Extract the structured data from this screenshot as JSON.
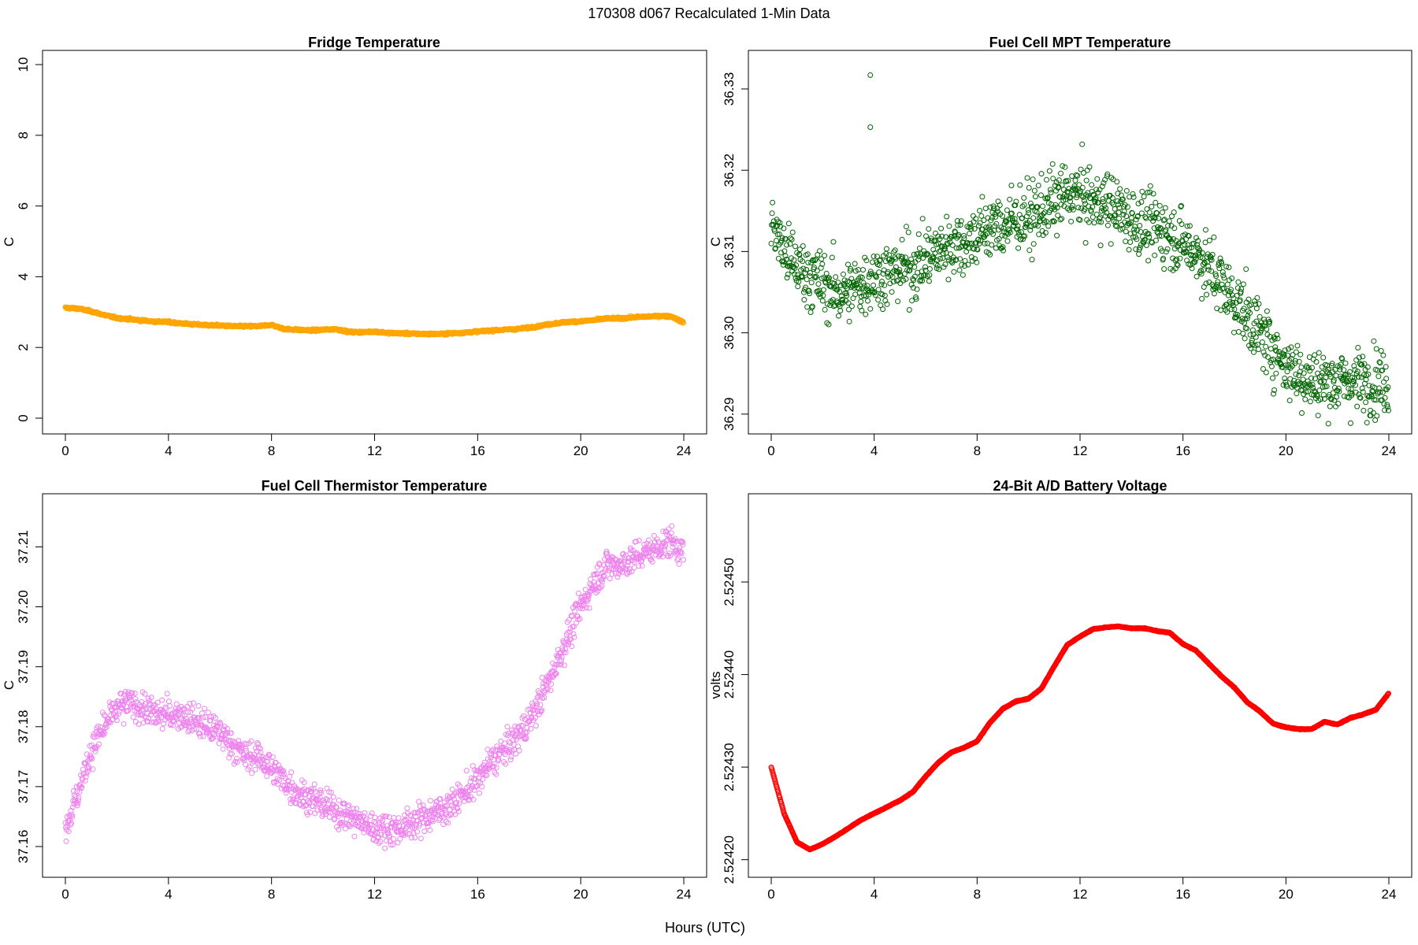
{
  "figure": {
    "suptitle": "170308   d067   Recalculated 1-Min Data",
    "xlabel": "Hours (UTC)"
  },
  "chart_data": [
    {
      "type": "scatter",
      "title": "Fridge Temperature",
      "xlabel": "",
      "ylabel": "C",
      "xlim": [
        0,
        24
      ],
      "ylim": [
        0,
        10
      ],
      "xticks": [
        0,
        4,
        8,
        12,
        16,
        20,
        24
      ],
      "xtick_labels": [
        "0",
        "4",
        "8",
        "12",
        "16",
        "20",
        "24"
      ],
      "yticks": [
        0,
        2,
        4,
        6,
        8,
        10
      ],
      "ytick_labels": [
        "0",
        "2",
        "4",
        "6",
        "8",
        "10"
      ],
      "color": "#FFA500",
      "marker": "open-circle",
      "series": [
        {
          "name": "Fridge Temperature",
          "x": [
            0,
            0.5,
            1,
            1.5,
            2,
            2.5,
            3,
            3.5,
            4,
            4.5,
            5,
            5.5,
            6,
            6.5,
            7,
            7.5,
            8,
            8.5,
            9,
            9.5,
            10,
            10.5,
            11,
            11.5,
            12,
            12.5,
            13,
            13.5,
            14,
            14.5,
            15,
            15.5,
            16,
            16.5,
            17,
            17.5,
            18,
            18.5,
            19,
            19.5,
            20,
            20.5,
            21,
            21.5,
            22,
            22.5,
            23,
            23.5,
            24
          ],
          "y": [
            3.12,
            3.1,
            3.02,
            2.92,
            2.83,
            2.8,
            2.76,
            2.73,
            2.72,
            2.68,
            2.65,
            2.63,
            2.62,
            2.6,
            2.6,
            2.6,
            2.64,
            2.52,
            2.5,
            2.48,
            2.5,
            2.52,
            2.44,
            2.43,
            2.45,
            2.41,
            2.4,
            2.39,
            2.38,
            2.38,
            2.4,
            2.42,
            2.45,
            2.48,
            2.5,
            2.52,
            2.56,
            2.62,
            2.68,
            2.72,
            2.74,
            2.77,
            2.82,
            2.82,
            2.85,
            2.87,
            2.89,
            2.88,
            2.7
          ]
        }
      ]
    },
    {
      "type": "scatter",
      "title": "Fuel Cell MPT Temperature",
      "xlabel": "",
      "ylabel": "C",
      "xlim": [
        0,
        24
      ],
      "ylim": [
        36.2895,
        36.333
      ],
      "xticks": [
        0,
        4,
        8,
        12,
        16,
        20,
        24
      ],
      "xtick_labels": [
        "0",
        "4",
        "8",
        "12",
        "16",
        "20",
        "24"
      ],
      "yticks": [
        36.29,
        36.3,
        36.31,
        36.32,
        36.33
      ],
      "ytick_labels": [
        "36.29",
        "36.30",
        "36.31",
        "36.32",
        "36.33"
      ],
      "color": "#006400",
      "marker": "open-circle",
      "series": [
        {
          "name": "Fuel Cell MPT Temperature",
          "x": [
            0,
            0.5,
            1,
            1.5,
            2,
            2.5,
            3,
            3.5,
            4,
            4.5,
            5,
            5.5,
            6,
            6.5,
            7,
            7.5,
            8,
            8.5,
            9,
            9.5,
            10,
            10.5,
            11,
            11.5,
            12,
            12.5,
            13,
            13.5,
            14,
            14.5,
            15,
            15.5,
            16,
            16.5,
            17,
            17.5,
            18,
            18.5,
            19,
            19.5,
            20,
            20.5,
            21,
            21.5,
            22,
            22.5,
            23,
            23.5,
            24
          ],
          "y": [
            36.314,
            36.31,
            36.308,
            36.307,
            36.306,
            36.305,
            36.305,
            36.306,
            36.307,
            36.307,
            36.308,
            36.308,
            36.309,
            36.31,
            36.311,
            36.311,
            36.312,
            36.313,
            36.313,
            36.314,
            36.314,
            36.315,
            36.316,
            36.317,
            36.317,
            36.316,
            36.316,
            36.315,
            36.314,
            36.313,
            36.313,
            36.312,
            36.311,
            36.31,
            36.308,
            36.306,
            36.304,
            36.302,
            36.3,
            36.298,
            36.296,
            36.295,
            36.294,
            36.294,
            36.294,
            36.294,
            36.294,
            36.294,
            36.294
          ],
          "outliers": [
            {
              "x": 3.85,
              "y": 36.3317
            },
            {
              "x": 3.85,
              "y": 36.3253
            }
          ]
        }
      ]
    },
    {
      "type": "scatter",
      "title": "Fuel Cell Thermistor Temperature",
      "xlabel": "",
      "ylabel": "C",
      "xlim": [
        0,
        24
      ],
      "ylim": [
        37.1575,
        37.2165
      ],
      "xticks": [
        0,
        4,
        8,
        12,
        16,
        20,
        24
      ],
      "xtick_labels": [
        "0",
        "4",
        "8",
        "12",
        "16",
        "20",
        "24"
      ],
      "yticks": [
        37.16,
        37.17,
        37.18,
        37.19,
        37.2,
        37.21
      ],
      "ytick_labels": [
        "37.16",
        "37.17",
        "37.18",
        "37.19",
        "37.20",
        "37.21"
      ],
      "color": "#EE82EE",
      "marker": "open-circle",
      "series": [
        {
          "name": "Fuel Cell Thermistor Temperature",
          "x": [
            0,
            0.5,
            1,
            1.5,
            2,
            2.5,
            3,
            3.5,
            4,
            4.5,
            5,
            5.5,
            6,
            6.5,
            7,
            7.5,
            8,
            8.5,
            9,
            9.5,
            10,
            10.5,
            11,
            11.5,
            12,
            12.5,
            13,
            13.5,
            14,
            14.5,
            15,
            15.5,
            16,
            16.5,
            17,
            17.5,
            18,
            18.5,
            19,
            19.5,
            20,
            20.5,
            21,
            21.5,
            22,
            22.5,
            23,
            23.5,
            24
          ],
          "y": [
            37.163,
            37.169,
            37.176,
            37.18,
            37.183,
            37.184,
            37.183,
            37.182,
            37.182,
            37.182,
            37.181,
            37.18,
            37.179,
            37.177,
            37.175,
            37.175,
            37.173,
            37.171,
            37.169,
            37.168,
            37.167,
            37.166,
            37.165,
            37.164,
            37.163,
            37.163,
            37.163,
            37.164,
            37.165,
            37.166,
            37.167,
            37.169,
            37.171,
            37.174,
            37.176,
            37.178,
            37.181,
            37.185,
            37.19,
            37.195,
            37.2,
            37.204,
            37.207,
            37.207,
            37.208,
            37.209,
            37.21,
            37.211,
            37.209
          ]
        }
      ]
    },
    {
      "type": "scatter",
      "title": "24-Bit A/D Battery Voltage",
      "xlabel": "",
      "ylabel": "volts",
      "xlim": [
        0,
        24
      ],
      "ylim": [
        2.524198,
        2.52458
      ],
      "xticks": [
        0,
        4,
        8,
        12,
        16,
        20,
        24
      ],
      "xtick_labels": [
        "0",
        "4",
        "8",
        "12",
        "16",
        "20",
        "24"
      ],
      "yticks": [
        2.5242,
        2.5243,
        2.5244,
        2.5245
      ],
      "ytick_labels": [
        "2.52420",
        "2.52430",
        "2.52440",
        "2.52450"
      ],
      "color": "#FF0000",
      "marker": "open-circle",
      "series": [
        {
          "name": "24-Bit A/D Battery Voltage",
          "x": [
            0,
            0.5,
            1,
            1.5,
            2,
            2.5,
            3,
            3.5,
            4,
            4.5,
            5,
            5.5,
            6,
            6.5,
            7,
            7.5,
            8,
            8.5,
            9,
            9.5,
            10,
            10.5,
            11,
            11.5,
            12,
            12.5,
            13,
            13.5,
            14,
            14.5,
            15,
            15.5,
            16,
            16.5,
            17,
            17.5,
            18,
            18.5,
            19,
            19.5,
            20,
            20.5,
            21,
            21.5,
            22,
            22.5,
            23,
            23.5,
            24
          ],
          "y": [
            2.5243,
            2.52425,
            2.524219,
            2.524211,
            2.524217,
            2.524225,
            2.524234,
            2.524243,
            2.52425,
            2.524257,
            2.524264,
            2.524273,
            2.52429,
            2.524305,
            2.524316,
            2.524321,
            2.524328,
            2.524348,
            2.524363,
            2.524371,
            2.524374,
            2.524385,
            2.524409,
            2.524432,
            2.524441,
            2.524449,
            2.524451,
            2.524452,
            2.52445,
            2.52445,
            2.524447,
            2.524445,
            2.524433,
            2.524426,
            2.524412,
            2.524398,
            2.524386,
            2.52437,
            2.52436,
            2.524347,
            2.524343,
            2.524341,
            2.524341,
            2.524349,
            2.524346,
            2.524353,
            2.524357,
            2.524362,
            2.52438
          ]
        }
      ]
    }
  ]
}
